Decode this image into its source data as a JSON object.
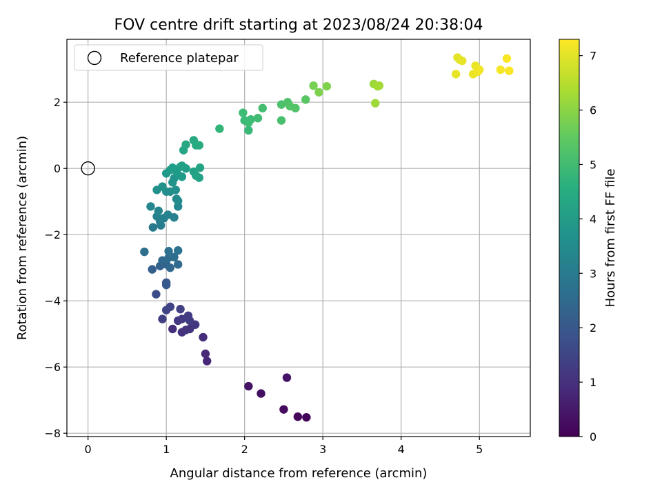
{
  "chart_data": {
    "type": "scatter",
    "title": "FOV centre drift starting at 2023/08/24 20:38:04",
    "xlabel": "Angular distance from reference (arcmin)",
    "ylabel": "Rotation from reference (arcmin)",
    "xlim": [
      -0.27,
      5.65
    ],
    "ylim": [
      -8.1,
      3.9
    ],
    "xticks": [
      0,
      1,
      2,
      3,
      4,
      5
    ],
    "yticks": [
      -8,
      -6,
      -4,
      -2,
      0,
      2
    ],
    "xtick_labels": [
      "0",
      "1",
      "2",
      "3",
      "4",
      "5"
    ],
    "ytick_labels": [
      "−8",
      "−6",
      "−4",
      "−2",
      "0",
      "2"
    ],
    "grid": true,
    "legend": {
      "placement": "top-left",
      "entries": [
        "Reference platepar"
      ]
    },
    "reference_point": {
      "label": "Reference platepar",
      "x": 0,
      "y": 0,
      "marker": "open-circle"
    },
    "colorbar": {
      "label": "Hours from first FF file",
      "colormap": "viridis",
      "range": [
        0,
        7.3
      ],
      "ticks": [
        0,
        1,
        2,
        3,
        4,
        5,
        6,
        7
      ],
      "tick_labels": [
        "0",
        "1",
        "2",
        "3",
        "4",
        "5",
        "6",
        "7"
      ]
    },
    "points": [
      {
        "x": 2.79,
        "y": -7.52,
        "c": 0.1
      },
      {
        "x": 2.68,
        "y": -7.5,
        "c": 0.15
      },
      {
        "x": 2.5,
        "y": -7.28,
        "c": 0.2
      },
      {
        "x": 2.21,
        "y": -6.8,
        "c": 0.3
      },
      {
        "x": 2.05,
        "y": -6.58,
        "c": 0.35
      },
      {
        "x": 2.54,
        "y": -6.32,
        "c": 0.4
      },
      {
        "x": 1.52,
        "y": -5.82,
        "c": 0.8
      },
      {
        "x": 1.5,
        "y": -5.6,
        "c": 0.85
      },
      {
        "x": 1.47,
        "y": -5.1,
        "c": 0.95
      },
      {
        "x": 1.08,
        "y": -4.85,
        "c": 1.0
      },
      {
        "x": 1.2,
        "y": -4.95,
        "c": 1.05
      },
      {
        "x": 1.25,
        "y": -4.88,
        "c": 1.1
      },
      {
        "x": 1.3,
        "y": -4.85,
        "c": 1.1
      },
      {
        "x": 1.37,
        "y": -4.72,
        "c": 1.15
      },
      {
        "x": 1.15,
        "y": -4.6,
        "c": 1.2
      },
      {
        "x": 1.2,
        "y": -4.55,
        "c": 1.25
      },
      {
        "x": 1.28,
        "y": -4.45,
        "c": 1.3
      },
      {
        "x": 1.3,
        "y": -4.6,
        "c": 1.3
      },
      {
        "x": 0.95,
        "y": -4.55,
        "c": 1.35
      },
      {
        "x": 1.18,
        "y": -4.25,
        "c": 1.4
      },
      {
        "x": 1.05,
        "y": -4.18,
        "c": 1.45
      },
      {
        "x": 1.0,
        "y": -4.28,
        "c": 1.5
      },
      {
        "x": 0.87,
        "y": -3.8,
        "c": 1.7
      },
      {
        "x": 1.0,
        "y": -3.45,
        "c": 2.0
      },
      {
        "x": 1.0,
        "y": -3.52,
        "c": 2.05
      },
      {
        "x": 0.82,
        "y": -3.05,
        "c": 2.2
      },
      {
        "x": 0.92,
        "y": -2.95,
        "c": 2.3
      },
      {
        "x": 1.0,
        "y": -2.9,
        "c": 2.35
      },
      {
        "x": 1.05,
        "y": -3.0,
        "c": 2.4
      },
      {
        "x": 0.95,
        "y": -2.78,
        "c": 2.45
      },
      {
        "x": 1.15,
        "y": -2.9,
        "c": 2.5
      },
      {
        "x": 1.03,
        "y": -2.7,
        "c": 2.55
      },
      {
        "x": 1.1,
        "y": -2.68,
        "c": 2.6
      },
      {
        "x": 0.72,
        "y": -2.52,
        "c": 2.65
      },
      {
        "x": 1.03,
        "y": -2.5,
        "c": 2.7
      },
      {
        "x": 1.15,
        "y": -2.48,
        "c": 2.75
      },
      {
        "x": 0.83,
        "y": -1.78,
        "c": 3.0
      },
      {
        "x": 0.93,
        "y": -1.72,
        "c": 3.05
      },
      {
        "x": 0.92,
        "y": -1.6,
        "c": 3.1
      },
      {
        "x": 0.97,
        "y": -1.5,
        "c": 3.15
      },
      {
        "x": 1.1,
        "y": -1.48,
        "c": 3.2
      },
      {
        "x": 1.02,
        "y": -1.4,
        "c": 3.25
      },
      {
        "x": 0.88,
        "y": -1.45,
        "c": 3.25
      },
      {
        "x": 0.9,
        "y": -1.28,
        "c": 3.3
      },
      {
        "x": 0.8,
        "y": -1.15,
        "c": 3.35
      },
      {
        "x": 1.15,
        "y": -1.15,
        "c": 3.4
      },
      {
        "x": 1.13,
        "y": -0.92,
        "c": 3.5
      },
      {
        "x": 1.15,
        "y": -0.98,
        "c": 3.5
      },
      {
        "x": 1.0,
        "y": -0.7,
        "c": 3.6
      },
      {
        "x": 1.05,
        "y": -0.7,
        "c": 3.6
      },
      {
        "x": 0.88,
        "y": -0.65,
        "c": 3.65
      },
      {
        "x": 1.12,
        "y": -0.65,
        "c": 3.65
      },
      {
        "x": 0.95,
        "y": -0.55,
        "c": 3.7
      },
      {
        "x": 1.08,
        "y": -0.42,
        "c": 3.75
      },
      {
        "x": 1.1,
        "y": -0.3,
        "c": 3.8
      },
      {
        "x": 1.15,
        "y": -0.2,
        "c": 3.85
      },
      {
        "x": 1.0,
        "y": -0.15,
        "c": 3.9
      },
      {
        "x": 1.05,
        "y": -0.05,
        "c": 3.95
      },
      {
        "x": 1.13,
        "y": -0.08,
        "c": 4.0
      },
      {
        "x": 1.2,
        "y": -0.25,
        "c": 4.0
      },
      {
        "x": 1.08,
        "y": 0.02,
        "c": 4.05
      },
      {
        "x": 1.18,
        "y": 0.05,
        "c": 4.1
      },
      {
        "x": 1.25,
        "y": 0.0,
        "c": 4.1
      },
      {
        "x": 1.2,
        "y": 0.08,
        "c": 4.15
      },
      {
        "x": 1.35,
        "y": -0.1,
        "c": 4.15
      },
      {
        "x": 1.38,
        "y": -0.22,
        "c": 4.2
      },
      {
        "x": 1.42,
        "y": -0.28,
        "c": 4.2
      },
      {
        "x": 1.43,
        "y": 0.02,
        "c": 4.25
      },
      {
        "x": 1.22,
        "y": 0.55,
        "c": 4.3
      },
      {
        "x": 1.25,
        "y": 0.72,
        "c": 4.35
      },
      {
        "x": 1.35,
        "y": 0.85,
        "c": 4.4
      },
      {
        "x": 1.38,
        "y": 0.7,
        "c": 4.4
      },
      {
        "x": 1.42,
        "y": 0.7,
        "c": 4.45
      },
      {
        "x": 1.68,
        "y": 1.2,
        "c": 4.8
      },
      {
        "x": 2.05,
        "y": 1.15,
        "c": 4.9
      },
      {
        "x": 2.0,
        "y": 1.45,
        "c": 4.95
      },
      {
        "x": 2.05,
        "y": 1.38,
        "c": 5.0
      },
      {
        "x": 2.08,
        "y": 1.48,
        "c": 5.0
      },
      {
        "x": 1.98,
        "y": 1.68,
        "c": 5.0
      },
      {
        "x": 2.17,
        "y": 1.52,
        "c": 5.05
      },
      {
        "x": 2.23,
        "y": 1.82,
        "c": 5.1
      },
      {
        "x": 2.47,
        "y": 1.45,
        "c": 5.15
      },
      {
        "x": 2.47,
        "y": 1.93,
        "c": 5.2
      },
      {
        "x": 2.55,
        "y": 2.0,
        "c": 5.25
      },
      {
        "x": 2.58,
        "y": 1.88,
        "c": 5.3
      },
      {
        "x": 2.65,
        "y": 1.82,
        "c": 5.3
      },
      {
        "x": 2.78,
        "y": 2.08,
        "c": 5.4
      },
      {
        "x": 2.88,
        "y": 2.5,
        "c": 5.8
      },
      {
        "x": 2.95,
        "y": 2.3,
        "c": 5.85
      },
      {
        "x": 3.05,
        "y": 2.48,
        "c": 5.9
      },
      {
        "x": 3.65,
        "y": 2.55,
        "c": 6.2
      },
      {
        "x": 3.67,
        "y": 1.97,
        "c": 6.25
      },
      {
        "x": 3.7,
        "y": 2.48,
        "c": 6.3
      },
      {
        "x": 3.72,
        "y": 2.5,
        "c": 6.3
      },
      {
        "x": 4.72,
        "y": 3.35,
        "c": 7.0
      },
      {
        "x": 4.75,
        "y": 3.28,
        "c": 7.0
      },
      {
        "x": 4.78,
        "y": 3.25,
        "c": 7.05
      },
      {
        "x": 4.7,
        "y": 2.85,
        "c": 7.05
      },
      {
        "x": 4.95,
        "y": 3.1,
        "c": 7.1
      },
      {
        "x": 4.92,
        "y": 2.85,
        "c": 7.1
      },
      {
        "x": 4.98,
        "y": 2.92,
        "c": 7.15
      },
      {
        "x": 5.0,
        "y": 2.98,
        "c": 7.15
      },
      {
        "x": 5.27,
        "y": 2.98,
        "c": 7.2
      },
      {
        "x": 5.35,
        "y": 3.32,
        "c": 7.25
      },
      {
        "x": 5.38,
        "y": 2.95,
        "c": 7.25
      }
    ]
  }
}
